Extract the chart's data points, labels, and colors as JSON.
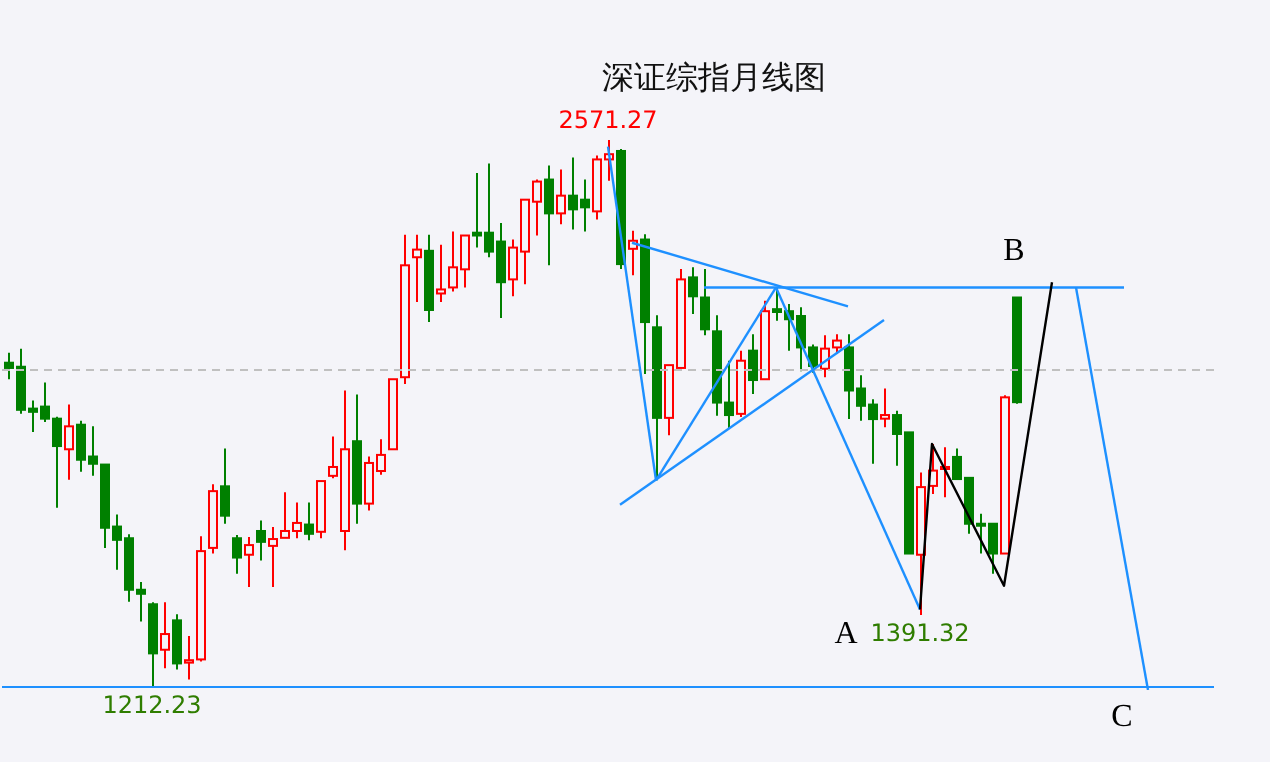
{
  "chart_data": {
    "type": "candlestick",
    "title": "深证综指月线图",
    "categories": [
      null,
      null,
      null,
      null,
      null,
      null,
      null,
      null,
      null,
      null,
      null,
      null,
      null,
      null,
      null,
      null,
      null,
      null,
      null,
      null,
      null,
      null,
      null,
      null,
      null,
      null,
      null,
      null,
      null,
      null,
      null,
      null,
      null,
      null,
      null,
      null,
      null,
      null,
      null,
      null,
      null,
      null,
      null,
      null,
      null,
      null,
      null,
      null,
      null,
      null,
      null,
      null,
      null,
      null,
      null,
      null,
      null,
      null,
      null,
      null,
      null,
      null,
      null,
      null,
      null,
      null,
      null,
      null,
      null,
      null,
      null,
      null,
      null,
      null,
      null,
      null,
      null,
      null,
      null,
      null,
      null,
      null,
      null,
      null,
      null,
      null,
      null,
      null,
      null,
      null,
      null,
      null,
      null,
      null,
      null,
      null,
      null,
      null,
      null,
      null,
      null
    ],
    "ohlc": [
      [
        2018,
        2043,
        1977,
        2005
      ],
      [
        2008,
        2053,
        1891,
        1901
      ],
      [
        1904,
        1924,
        1846,
        1896
      ],
      [
        1909,
        1969,
        1871,
        1879
      ],
      [
        1879,
        1884,
        1658,
        1811
      ],
      [
        1803,
        1914,
        1727,
        1860
      ],
      [
        1864,
        1874,
        1747,
        1777
      ],
      [
        1785,
        1860,
        1737,
        1767
      ],
      [
        1765,
        1765,
        1558,
        1608
      ],
      [
        1611,
        1641,
        1504,
        1578
      ],
      [
        1582,
        1592,
        1424,
        1454
      ],
      [
        1454,
        1473,
        1375,
        1444
      ],
      [
        1418,
        1423,
        1212.23,
        1296
      ],
      [
        1305,
        1423,
        1259,
        1344
      ],
      [
        1378,
        1393,
        1256,
        1271
      ],
      [
        1273,
        1339,
        1231,
        1279
      ],
      [
        1281,
        1587,
        1276,
        1550
      ],
      [
        1558,
        1716,
        1544,
        1699
      ],
      [
        1711,
        1805,
        1618,
        1638
      ],
      [
        1582,
        1590,
        1494,
        1534
      ],
      [
        1541,
        1585,
        1461,
        1565
      ],
      [
        1600,
        1626,
        1527,
        1573
      ],
      [
        1563,
        1610,
        1461,
        1580
      ],
      [
        1583,
        1696,
        1583,
        1600
      ],
      [
        1600,
        1671,
        1582,
        1620
      ],
      [
        1616,
        1671,
        1577,
        1593
      ],
      [
        1598,
        1724,
        1582,
        1724
      ],
      [
        1737,
        1835,
        1731,
        1759
      ],
      [
        1600,
        1949,
        1552,
        1803
      ],
      [
        1823,
        1939,
        1618,
        1668
      ],
      [
        1668,
        1785,
        1651,
        1769
      ],
      [
        1749,
        1828,
        1740,
        1789
      ],
      [
        1803,
        1977,
        1803,
        1977
      ],
      [
        1982,
        2336,
        1965,
        2260
      ],
      [
        2280,
        2336,
        2169,
        2299
      ],
      [
        2296,
        2336,
        2119,
        2149
      ],
      [
        2190,
        2311,
        2169,
        2200
      ],
      [
        2205,
        2344,
        2195,
        2255
      ],
      [
        2250,
        2334,
        2205,
        2334
      ],
      [
        2341,
        2489,
        2304,
        2334
      ],
      [
        2341,
        2513,
        2280,
        2294
      ],
      [
        2319,
        2365,
        2129,
        2218
      ],
      [
        2225,
        2324,
        2183,
        2304
      ],
      [
        2294,
        2423,
        2213,
        2423
      ],
      [
        2418,
        2473,
        2334,
        2468
      ],
      [
        2473,
        2508,
        2260,
        2389
      ],
      [
        2389,
        2498,
        2362,
        2433
      ],
      [
        2433,
        2528,
        2349,
        2399
      ],
      [
        2423,
        2473,
        2344,
        2404
      ],
      [
        2394,
        2533,
        2374,
        2523
      ],
      [
        2523,
        2571.27,
        2470,
        2536
      ],
      [
        2544,
        2549,
        2251,
        2263
      ],
      [
        2301,
        2346,
        2235,
        2321
      ],
      [
        2324,
        2337,
        1990,
        2119
      ],
      [
        2106,
        2136,
        1726,
        1881
      ],
      [
        1881,
        2012,
        1838,
        2012
      ],
      [
        2005,
        2251,
        2005,
        2225
      ],
      [
        2230,
        2255,
        2139,
        2183
      ],
      [
        2180,
        2251,
        2086,
        2101
      ],
      [
        2096,
        2136,
        1886,
        1919
      ],
      [
        1919,
        2023,
        1855,
        1888
      ],
      [
        1891,
        2048,
        1883,
        2023
      ],
      [
        2048,
        2089,
        1940,
        1975
      ],
      [
        1977,
        2172,
        1977,
        2146
      ],
      [
        2151,
        2205,
        2122,
        2144
      ],
      [
        2146,
        2164,
        2048,
        2126
      ],
      [
        2134,
        2156,
        1997,
        2056
      ],
      [
        2056,
        2063,
        1993,
        2010
      ],
      [
        2003,
        2086,
        1982,
        2053
      ],
      [
        2056,
        2089,
        2040,
        2073
      ],
      [
        2056,
        2089,
        1878,
        1949
      ],
      [
        1954,
        1987,
        1874,
        1911
      ],
      [
        1914,
        1927,
        1767,
        1878
      ],
      [
        1879,
        1954,
        1858,
        1888
      ],
      [
        1888,
        1899,
        1762,
        1841
      ],
      [
        1845,
        1845,
        1544,
        1544
      ],
      [
        1541,
        1745,
        1391.32,
        1709
      ],
      [
        1712,
        1816,
        1692,
        1750
      ],
      [
        1754,
        1808,
        1684,
        1759
      ],
      [
        1784,
        1805,
        1729,
        1729
      ],
      [
        1732,
        1732,
        1593,
        1618
      ],
      [
        1618,
        1643,
        1544,
        1613
      ],
      [
        1618,
        1618,
        1494,
        1544
      ],
      [
        1544,
        1937,
        1544,
        1932
      ],
      [
        2180,
        2180,
        1916,
        1920
      ],
      null,
      null,
      null,
      null,
      null,
      null,
      null,
      null,
      null,
      null,
      null,
      null,
      null,
      null,
      null,
      null
    ],
    "series": [
      {
        "type": "line",
        "color": "#1e90ff",
        "values": [
          null,
          null,
          null,
          null,
          null,
          null,
          null,
          null,
          null,
          null,
          null,
          null,
          null,
          null,
          null,
          null,
          null,
          null,
          null,
          null,
          null,
          null,
          null,
          null,
          null,
          null,
          null,
          null,
          null,
          null,
          null,
          null,
          null,
          null,
          null,
          null,
          null,
          null,
          null,
          null,
          null,
          null,
          null,
          null,
          null,
          null,
          null,
          null,
          null,
          null,
          2555,
          null,
          null,
          null,
          1726,
          null,
          null,
          null,
          null,
          null,
          null,
          null,
          null,
          null,
          null,
          null,
          null,
          null,
          null,
          null,
          null,
          null,
          null,
          null,
          null,
          null,
          null,
          null,
          null,
          null,
          null,
          null,
          null,
          null,
          null,
          null,
          null,
          null,
          null,
          null,
          null,
          null,
          null,
          null,
          null,
          null,
          null,
          null,
          null,
          null,
          null
        ]
      },
      {
        "type": "line",
        "color": "#1e90ff",
        "values": [
          null,
          null,
          null,
          null,
          null,
          null,
          null,
          null,
          null,
          null,
          null,
          null,
          null,
          null,
          null,
          null,
          null,
          null,
          null,
          null,
          null,
          null,
          null,
          null,
          null,
          null,
          null,
          null,
          null,
          null,
          null,
          null,
          null,
          null,
          null,
          null,
          null,
          null,
          null,
          null,
          null,
          null,
          null,
          null,
          null,
          null,
          null,
          null,
          null,
          null,
          null,
          null,
          2316,
          null,
          null,
          null,
          null,
          null,
          null,
          null,
          null,
          null,
          null,
          null,
          null,
          null,
          null,
          null,
          null,
          null,
          2158,
          null,
          null,
          null,
          null,
          null,
          null,
          null,
          null,
          null,
          null,
          null,
          null,
          null,
          null,
          null,
          null,
          null,
          null,
          null,
          null,
          null,
          null,
          null,
          null,
          null,
          null,
          null,
          null,
          null,
          null
        ]
      },
      {
        "type": "line",
        "color": "#1e90ff",
        "values": [
          null,
          null,
          null,
          null,
          null,
          null,
          null,
          null,
          null,
          null,
          null,
          null,
          null,
          null,
          null,
          null,
          null,
          null,
          null,
          null,
          null,
          null,
          null,
          null,
          null,
          null,
          null,
          null,
          null,
          null,
          null,
          null,
          null,
          null,
          null,
          null,
          null,
          null,
          null,
          null,
          null,
          null,
          null,
          null,
          null,
          null,
          null,
          null,
          null,
          null,
          null,
          1665,
          null,
          null,
          null,
          null,
          null,
          null,
          null,
          null,
          null,
          null,
          null,
          null,
          null,
          null,
          null,
          null,
          null,
          null,
          null,
          null,
          null,
          2124,
          null,
          null,
          null,
          null,
          null,
          null,
          null,
          null,
          null,
          null,
          null,
          null,
          null,
          null,
          null,
          null,
          null,
          null,
          null,
          null,
          null,
          null,
          null,
          null,
          null,
          null,
          null
        ]
      },
      {
        "type": "line",
        "color": "#1e90ff",
        "values": [
          null,
          null,
          null,
          null,
          null,
          null,
          null,
          null,
          null,
          null,
          null,
          null,
          null,
          null,
          null,
          null,
          null,
          null,
          null,
          null,
          null,
          null,
          null,
          null,
          null,
          null,
          null,
          null,
          null,
          null,
          null,
          null,
          null,
          null,
          null,
          null,
          null,
          null,
          null,
          null,
          null,
          null,
          null,
          null,
          null,
          null,
          null,
          null,
          null,
          null,
          null,
          null,
          null,
          null,
          1726,
          null,
          null,
          null,
          null,
          null,
          null,
          null,
          null,
          null,
          2205,
          null,
          null,
          null,
          null,
          null,
          null,
          null,
          null,
          null,
          null,
          null,
          null,
          null,
          null,
          null,
          null,
          null,
          null,
          null,
          null,
          null,
          null,
          null,
          null,
          null,
          null,
          null,
          null,
          null,
          null,
          null,
          null,
          null,
          null,
          null,
          null
        ]
      },
      {
        "type": "line",
        "color": "#1e90ff",
        "values": [
          null,
          null,
          null,
          null,
          null,
          null,
          null,
          null,
          null,
          null,
          null,
          null,
          null,
          null,
          null,
          null,
          null,
          null,
          null,
          null,
          null,
          null,
          null,
          null,
          null,
          null,
          null,
          null,
          null,
          null,
          null,
          null,
          null,
          null,
          null,
          null,
          null,
          null,
          null,
          null,
          null,
          null,
          null,
          null,
          null,
          null,
          null,
          null,
          null,
          null,
          null,
          null,
          null,
          null,
          null,
          null,
          null,
          null,
          null,
          null,
          null,
          null,
          null,
          null,
          2205,
          null,
          null,
          null,
          null,
          null,
          null,
          null,
          null,
          null,
          null,
          null,
          1405,
          null,
          null,
          null,
          null,
          null,
          null,
          null,
          null,
          null,
          null,
          null,
          null,
          null,
          null,
          null,
          null,
          null,
          null,
          null,
          null,
          null,
          null,
          null,
          null
        ]
      },
      {
        "type": "line",
        "color": "#1e90ff",
        "values": [
          null,
          null,
          null,
          null,
          null,
          null,
          null,
          null,
          null,
          null,
          null,
          null,
          null,
          null,
          null,
          null,
          null,
          null,
          null,
          null,
          null,
          null,
          null,
          null,
          null,
          null,
          null,
          null,
          null,
          null,
          null,
          null,
          null,
          null,
          null,
          null,
          null,
          null,
          null,
          null,
          null,
          null,
          null,
          null,
          null,
          null,
          null,
          null,
          null,
          null,
          null,
          null,
          null,
          null,
          null,
          null,
          null,
          null,
          2205,
          null,
          null,
          null,
          null,
          null,
          null,
          null,
          null,
          null,
          null,
          null,
          null,
          null,
          null,
          null,
          null,
          null,
          null,
          null,
          null,
          null,
          null,
          null,
          null,
          null,
          null,
          null,
          null,
          null,
          null,
          null,
          null,
          null,
          null,
          2205,
          null,
          null,
          null,
          null,
          null,
          null,
          null
        ]
      },
      {
        "type": "line",
        "color": "#1e90ff",
        "values": [
          null,
          null,
          null,
          null,
          null,
          null,
          null,
          null,
          null,
          null,
          null,
          null,
          null,
          null,
          null,
          null,
          null,
          null,
          null,
          null,
          null,
          null,
          null,
          null,
          null,
          null,
          null,
          null,
          null,
          null,
          null,
          null,
          null,
          null,
          null,
          null,
          null,
          null,
          null,
          null,
          null,
          null,
          null,
          null,
          null,
          null,
          null,
          null,
          null,
          null,
          null,
          null,
          null,
          null,
          null,
          null,
          null,
          null,
          null,
          null,
          null,
          null,
          null,
          null,
          null,
          null,
          null,
          null,
          null,
          null,
          null,
          null,
          null,
          null,
          null,
          null,
          null,
          null,
          null,
          null,
          null,
          null,
          null,
          null,
          null,
          null,
          null,
          null,
          null,
          2205,
          null,
          null,
          null,
          null,
          null,
          1205,
          null,
          null,
          null,
          null,
          null
        ]
      },
      {
        "type": "line",
        "color": "#000000",
        "values": [
          null,
          null,
          null,
          null,
          null,
          null,
          null,
          null,
          null,
          null,
          null,
          null,
          null,
          null,
          null,
          null,
          null,
          null,
          null,
          null,
          null,
          null,
          null,
          null,
          null,
          null,
          null,
          null,
          null,
          null,
          null,
          null,
          null,
          null,
          null,
          null,
          null,
          null,
          null,
          null,
          null,
          null,
          null,
          null,
          null,
          null,
          null,
          null,
          null,
          null,
          null,
          null,
          null,
          null,
          null,
          null,
          null,
          null,
          null,
          null,
          null,
          null,
          null,
          null,
          null,
          null,
          null,
          null,
          null,
          null,
          null,
          null,
          null,
          null,
          null,
          null,
          1405,
          1816,
          null,
          null,
          null,
          null,
          null,
          1464,
          null,
          null,
          null,
          2218,
          null,
          null,
          null,
          null,
          null,
          null,
          null,
          null,
          null,
          null,
          null,
          null,
          null
        ]
      }
    ],
    "ref_lines": [
      {
        "axis": "y",
        "value": 2000,
        "color": "#c0c0c0",
        "line_style": "dashed"
      },
      {
        "axis": "y",
        "value": 1212.23,
        "color": "#1e90ff",
        "line_style": "solid"
      }
    ],
    "annotations": [
      {
        "text": "2571.27",
        "y": 2571.27
      },
      {
        "text": "1212.23",
        "y": 1212.23
      },
      {
        "text": "1391.32",
        "y": 1391.32
      },
      "A",
      {
        "text": "B",
        "y": 2218
      },
      {
        "text": "C",
        "y": 1205
      }
    ]
  }
}
